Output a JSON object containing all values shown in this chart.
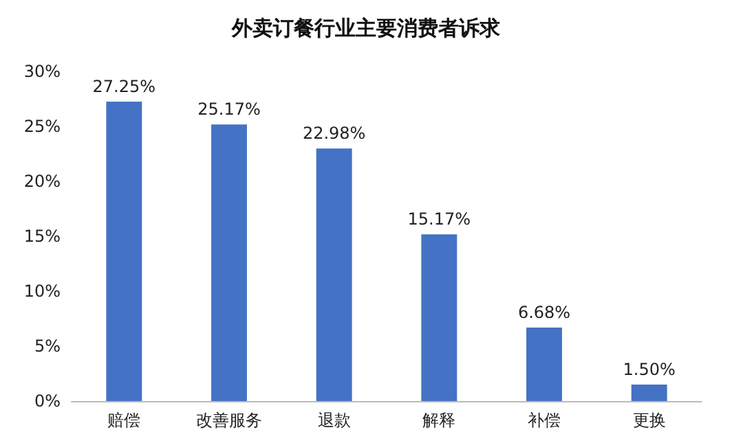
{
  "chart_data": {
    "type": "bar",
    "title": "外卖订餐行业主要消费者诉求",
    "categories": [
      "赔偿",
      "改善服务",
      "退款",
      "解释",
      "补偿",
      "更换"
    ],
    "values": [
      27.25,
      25.17,
      22.98,
      15.17,
      6.68,
      1.5
    ],
    "value_labels": [
      "27.25%",
      "25.17%",
      "22.98%",
      "15.17%",
      "6.68%",
      "1.50%"
    ],
    "color": "#4472c4",
    "ylim": [
      0,
      30
    ],
    "yticks": [
      {
        "value": 0,
        "label": "0%"
      },
      {
        "value": 5,
        "label": "5%"
      },
      {
        "value": 10,
        "label": "10%"
      },
      {
        "value": 15,
        "label": "15%"
      },
      {
        "value": 20,
        "label": "20%"
      },
      {
        "value": 25,
        "label": "25%"
      },
      {
        "value": 30,
        "label": "30%"
      }
    ],
    "grid": false
  }
}
